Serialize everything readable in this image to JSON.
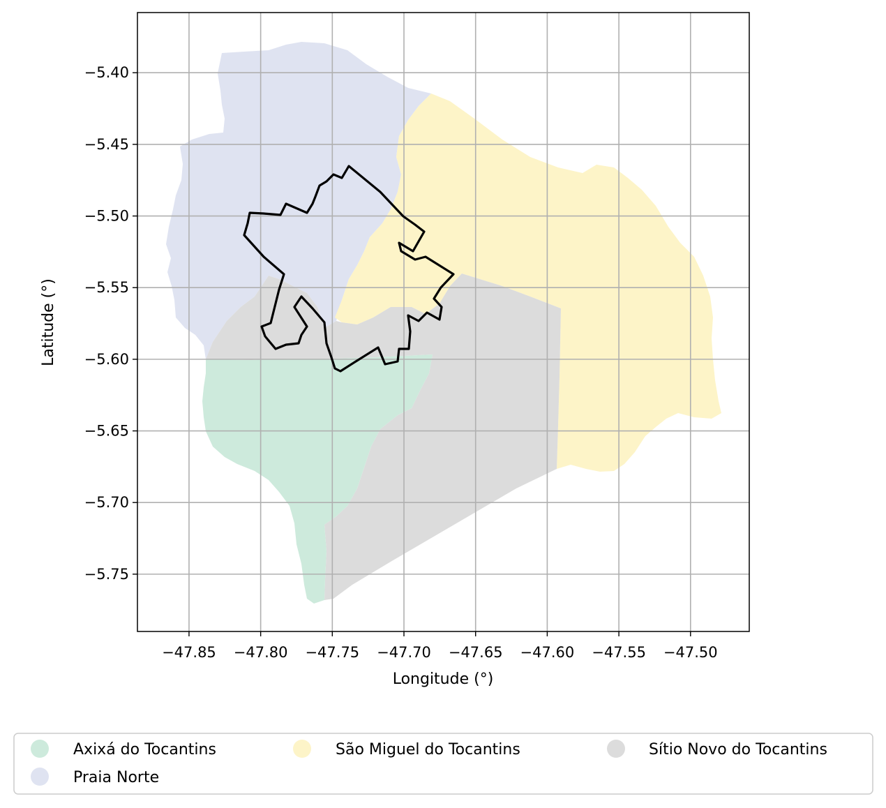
{
  "chart_data": {
    "type": "map",
    "xlabel": "Longitude (°)",
    "ylabel": "Latitude (°)",
    "xlim": [
      -47.886,
      -47.459
    ],
    "ylim": [
      -5.79,
      -5.358
    ],
    "xticks": [
      -47.85,
      -47.8,
      -47.75,
      -47.7,
      -47.65,
      -47.6,
      -47.55,
      -47.5
    ],
    "xtick_labels": [
      "−47.85",
      "−47.80",
      "−47.75",
      "−47.70",
      "−47.65",
      "−47.60",
      "−47.55",
      "−47.50"
    ],
    "yticks": [
      -5.4,
      -5.45,
      -5.5,
      -5.55,
      -5.6,
      -5.65,
      -5.7,
      -5.75
    ],
    "ytick_labels": [
      "−5.40",
      "−5.45",
      "−5.50",
      "−5.55",
      "−5.60",
      "−5.65",
      "−5.70",
      "−5.75"
    ],
    "grid": true,
    "legend_placement": "below",
    "regions": [
      {
        "name": "Axixá do Tocantins",
        "color": "#cdeadc"
      },
      {
        "name": "Praia Norte",
        "color": "#dfe3f1"
      },
      {
        "name": "São Miguel do Tocantins",
        "color": "#fdf4c8"
      },
      {
        "name": "Sítio Novo do Tocantins",
        "color": "#dcdcdc"
      }
    ],
    "outline_color": "#000000"
  }
}
